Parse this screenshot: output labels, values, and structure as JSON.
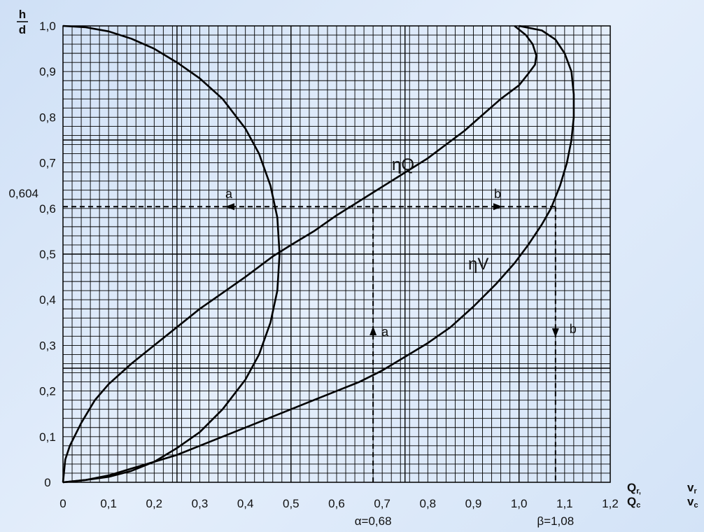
{
  "chart_data": {
    "type": "line",
    "y_axis_label_top": "h",
    "y_axis_label_bottom": "d",
    "x_axis_label_left": {
      "num": "Q",
      "num_sub": "r,",
      "den": "Q",
      "den_sub": "c"
    },
    "x_axis_label_right": {
      "num": "v",
      "num_sub": "r",
      "den": "v",
      "den_sub": "c"
    },
    "xlim": [
      0,
      1.2
    ],
    "ylim": [
      0,
      1.0
    ],
    "x_ticks": [
      "0",
      "0,1",
      "0,2",
      "0,3",
      "0,4",
      "0,5",
      "0,6",
      "0,7",
      "0,8",
      "0,9",
      "1,0",
      "1,1",
      "1,2"
    ],
    "y_ticks": [
      "0",
      "0,1",
      "0,2",
      "0,3",
      "0,4",
      "0,5",
      "0,6",
      "0,7",
      "0,8",
      "0,9",
      "1,0"
    ],
    "grid": "fine millimetre grid",
    "series": [
      {
        "name": "ηQ",
        "points": [
          [
            0,
            0
          ],
          [
            0.005,
            0.05
          ],
          [
            0.015,
            0.08
          ],
          [
            0.04,
            0.13
          ],
          [
            0.07,
            0.18
          ],
          [
            0.1,
            0.215
          ],
          [
            0.15,
            0.26
          ],
          [
            0.2,
            0.3
          ],
          [
            0.25,
            0.34
          ],
          [
            0.3,
            0.38
          ],
          [
            0.35,
            0.415
          ],
          [
            0.4,
            0.45
          ],
          [
            0.46,
            0.495
          ],
          [
            0.5,
            0.52
          ],
          [
            0.55,
            0.55
          ],
          [
            0.6,
            0.585
          ],
          [
            0.64,
            0.61
          ],
          [
            0.68,
            0.635
          ],
          [
            0.72,
            0.66
          ],
          [
            0.76,
            0.685
          ],
          [
            0.8,
            0.71
          ],
          [
            0.84,
            0.74
          ],
          [
            0.88,
            0.77
          ],
          [
            0.92,
            0.805
          ],
          [
            0.96,
            0.84
          ],
          [
            1.0,
            0.87
          ],
          [
            1.02,
            0.895
          ],
          [
            1.035,
            0.915
          ],
          [
            1.038,
            0.935
          ],
          [
            1.03,
            0.96
          ],
          [
            1.015,
            0.98
          ],
          [
            0.99,
            1.0
          ]
        ]
      },
      {
        "name": "ηV",
        "points": [
          [
            0,
            0
          ],
          [
            0.05,
            0.005
          ],
          [
            0.1,
            0.015
          ],
          [
            0.15,
            0.03
          ],
          [
            0.2,
            0.045
          ],
          [
            0.25,
            0.06
          ],
          [
            0.3,
            0.08
          ],
          [
            0.35,
            0.1
          ],
          [
            0.4,
            0.12
          ],
          [
            0.45,
            0.14
          ],
          [
            0.5,
            0.16
          ],
          [
            0.55,
            0.18
          ],
          [
            0.6,
            0.2
          ],
          [
            0.65,
            0.22
          ],
          [
            0.7,
            0.245
          ],
          [
            0.75,
            0.275
          ],
          [
            0.8,
            0.305
          ],
          [
            0.85,
            0.34
          ],
          [
            0.9,
            0.385
          ],
          [
            0.95,
            0.435
          ],
          [
            0.99,
            0.48
          ],
          [
            1.02,
            0.52
          ],
          [
            1.05,
            0.565
          ],
          [
            1.07,
            0.6
          ],
          [
            1.09,
            0.65
          ],
          [
            1.105,
            0.7
          ],
          [
            1.115,
            0.75
          ],
          [
            1.12,
            0.8
          ],
          [
            1.12,
            0.85
          ],
          [
            1.115,
            0.9
          ],
          [
            1.1,
            0.94
          ],
          [
            1.08,
            0.97
          ],
          [
            1.05,
            0.99
          ],
          [
            1.0,
            1.0
          ]
        ]
      },
      {
        "name": "",
        "points": [
          [
            0,
            0
          ],
          [
            0.05,
            0.005
          ],
          [
            0.1,
            0.012
          ],
          [
            0.15,
            0.025
          ],
          [
            0.2,
            0.045
          ],
          [
            0.25,
            0.075
          ],
          [
            0.3,
            0.11
          ],
          [
            0.35,
            0.16
          ],
          [
            0.4,
            0.225
          ],
          [
            0.43,
            0.28
          ],
          [
            0.455,
            0.35
          ],
          [
            0.47,
            0.42
          ],
          [
            0.475,
            0.5
          ],
          [
            0.47,
            0.58
          ],
          [
            0.455,
            0.65
          ],
          [
            0.43,
            0.72
          ],
          [
            0.4,
            0.775
          ],
          [
            0.35,
            0.84
          ],
          [
            0.3,
            0.885
          ],
          [
            0.25,
            0.92
          ],
          [
            0.2,
            0.95
          ],
          [
            0.15,
            0.972
          ],
          [
            0.1,
            0.988
          ],
          [
            0.05,
            0.997
          ],
          [
            0,
            1.0
          ]
        ]
      }
    ],
    "annotations": {
      "y_marker": {
        "value": 0.604,
        "label": "0,604"
      },
      "alpha": {
        "x": 0.68,
        "label": "α=0,68"
      },
      "beta": {
        "x": 1.08,
        "label": "β=1,08"
      },
      "arrow_label_a": "a",
      "arrow_label_b": "b"
    }
  }
}
